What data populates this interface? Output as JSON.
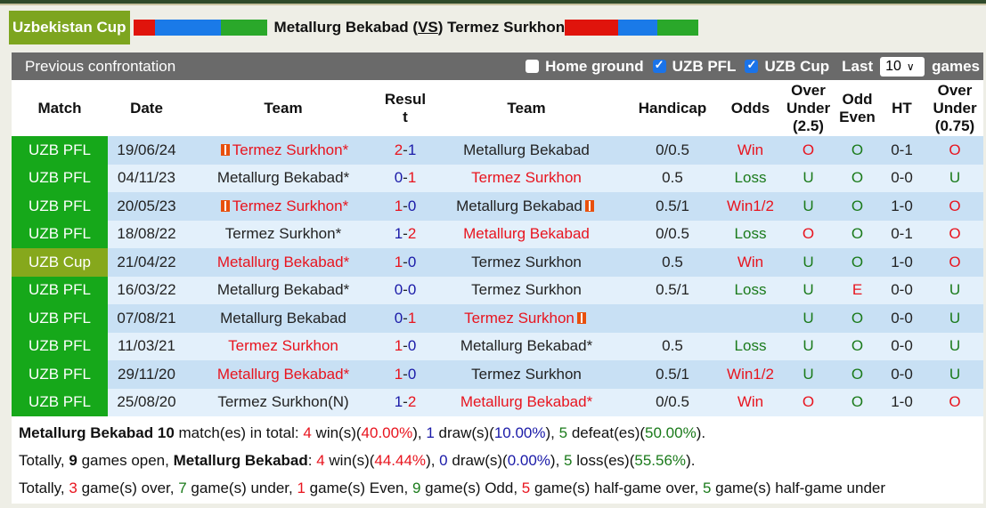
{
  "header": {
    "competition": "Uzbekistan Cup",
    "home": "Metallurg Bekabad",
    "vs": "VS",
    "away": "Termez Surkhon"
  },
  "toolbar": {
    "title": "Previous confrontation",
    "home_ground": "Home ground",
    "home_ground_checked": false,
    "uzb_pfl": "UZB PFL",
    "uzb_pfl_checked": true,
    "uzb_cup": "UZB Cup",
    "uzb_cup_checked": true,
    "last": "Last",
    "last_value": "10",
    "games": "games"
  },
  "columns": [
    "Match",
    "Date",
    "Team",
    "Resul t",
    "Team",
    "Handicap",
    "Odds",
    "Over Under (2.5)",
    "Odd Even",
    "HT",
    "Over Under (0.75)"
  ],
  "rows": [
    {
      "match": "UZB PFL",
      "date": "19/06/24",
      "home": "Termez Surkhon*",
      "home_red": true,
      "home_flag": true,
      "s1": "2",
      "s2": "1",
      "c1": "red",
      "c2": "blue",
      "away": "Metallurg Bekabad",
      "away_red": false,
      "away_flag": false,
      "hc": "0/0.5",
      "odds": "Win",
      "ou": "O",
      "oe": "O",
      "ht": "0-1",
      "ou2": "O"
    },
    {
      "match": "UZB PFL",
      "date": "04/11/23",
      "home": "Metallurg Bekabad*",
      "home_red": false,
      "s1": "0",
      "s2": "1",
      "c1": "blue",
      "c2": "red",
      "away": "Termez Surkhon",
      "away_red": true,
      "hc": "0.5",
      "odds": "Loss",
      "ou": "U",
      "oe": "O",
      "ht": "0-0",
      "ou2": "U"
    },
    {
      "match": "UZB PFL",
      "date": "20/05/23",
      "home": "Termez Surkhon*",
      "home_red": true,
      "home_flag": true,
      "s1": "1",
      "s2": "0",
      "c1": "red",
      "c2": "blue",
      "away": "Metallurg Bekabad",
      "away_red": false,
      "away_flag": true,
      "hc": "0.5/1",
      "odds": "Win1/2",
      "ou": "U",
      "oe": "O",
      "ht": "1-0",
      "ou2": "O"
    },
    {
      "match": "UZB PFL",
      "date": "18/08/22",
      "home": "Termez Surkhon*",
      "home_red": false,
      "s1": "1",
      "s2": "2",
      "c1": "blue",
      "c2": "red",
      "away": "Metallurg Bekabad",
      "away_red": true,
      "hc": "0/0.5",
      "odds": "Loss",
      "ou": "O",
      "oe": "O",
      "ht": "0-1",
      "ou2": "O"
    },
    {
      "match": "UZB Cup",
      "date": "21/04/22",
      "home": "Metallurg Bekabad*",
      "home_red": true,
      "s1": "1",
      "s2": "0",
      "c1": "red",
      "c2": "blue",
      "away": "Termez Surkhon",
      "away_red": false,
      "hc": "0.5",
      "odds": "Win",
      "ou": "U",
      "oe": "O",
      "ht": "1-0",
      "ou2": "O"
    },
    {
      "match": "UZB PFL",
      "date": "16/03/22",
      "home": "Metallurg Bekabad*",
      "home_red": false,
      "s1": "0",
      "s2": "0",
      "c1": "blue",
      "c2": "blue",
      "away": "Termez Surkhon",
      "away_red": false,
      "hc": "0.5/1",
      "odds": "Loss",
      "ou": "U",
      "oe": "E",
      "ht": "0-0",
      "ou2": "U"
    },
    {
      "match": "UZB PFL",
      "date": "07/08/21",
      "home": "Metallurg Bekabad",
      "home_red": false,
      "s1": "0",
      "s2": "1",
      "c1": "blue",
      "c2": "red",
      "away": "Termez Surkhon",
      "away_red": true,
      "away_flag": true,
      "hc": "",
      "odds": "",
      "ou": "U",
      "oe": "O",
      "ht": "0-0",
      "ou2": "U"
    },
    {
      "match": "UZB PFL",
      "date": "11/03/21",
      "home": "Termez Surkhon",
      "home_red": true,
      "s1": "1",
      "s2": "0",
      "c1": "red",
      "c2": "blue",
      "away": "Metallurg Bekabad*",
      "away_red": false,
      "hc": "0.5",
      "odds": "Loss",
      "ou": "U",
      "oe": "O",
      "ht": "0-0",
      "ou2": "U"
    },
    {
      "match": "UZB PFL",
      "date": "29/11/20",
      "home": "Metallurg Bekabad*",
      "home_red": true,
      "s1": "1",
      "s2": "0",
      "c1": "red",
      "c2": "blue",
      "away": "Termez Surkhon",
      "away_red": false,
      "hc": "0.5/1",
      "odds": "Win1/2",
      "ou": "U",
      "oe": "O",
      "ht": "0-0",
      "ou2": "U"
    },
    {
      "match": "UZB PFL",
      "date": "25/08/20",
      "home": "Termez Surkhon(N)",
      "home_red": false,
      "s1": "1",
      "s2": "2",
      "c1": "blue",
      "c2": "red",
      "away": "Metallurg Bekabad*",
      "away_red": true,
      "hc": "0/0.5",
      "odds": "Win",
      "ou": "O",
      "oe": "O",
      "ht": "1-0",
      "ou2": "O"
    }
  ],
  "summary": [
    [
      [
        "Metallurg Bekabad 10",
        "b"
      ],
      [
        " match(es) in total: ",
        ""
      ],
      [
        "4",
        "red"
      ],
      [
        " win(s)(",
        ""
      ],
      [
        "40.00%",
        "red"
      ],
      [
        "), ",
        ""
      ],
      [
        "1",
        "blue"
      ],
      [
        " draw(s)(",
        ""
      ],
      [
        "10.00%",
        "blue"
      ],
      [
        "), ",
        ""
      ],
      [
        "5",
        "green"
      ],
      [
        " defeat(es)(",
        ""
      ],
      [
        "50.00%",
        "green"
      ],
      [
        ").",
        ""
      ]
    ],
    [
      [
        "Totally, ",
        ""
      ],
      [
        "9",
        "b"
      ],
      [
        " games open, ",
        ""
      ],
      [
        "Metallurg Bekabad",
        "b"
      ],
      [
        ": ",
        ""
      ],
      [
        "4",
        "red"
      ],
      [
        " win(s)(",
        ""
      ],
      [
        "44.44%",
        "red"
      ],
      [
        "), ",
        ""
      ],
      [
        "0",
        "blue"
      ],
      [
        " draw(s)(",
        ""
      ],
      [
        "0.00%",
        "blue"
      ],
      [
        "), ",
        ""
      ],
      [
        "5",
        "green"
      ],
      [
        " loss(es)(",
        ""
      ],
      [
        "55.56%",
        "green"
      ],
      [
        ").",
        ""
      ]
    ],
    [
      [
        "Totally, ",
        ""
      ],
      [
        "3",
        "red"
      ],
      [
        " game(s) over, ",
        ""
      ],
      [
        "7",
        "green"
      ],
      [
        " game(s) under, ",
        ""
      ],
      [
        "1",
        "red"
      ],
      [
        " game(s) Even, ",
        ""
      ],
      [
        "9",
        "green"
      ],
      [
        " game(s) Odd, ",
        ""
      ],
      [
        "5",
        "red"
      ],
      [
        " game(s) half-game over, ",
        ""
      ],
      [
        "5",
        "green"
      ],
      [
        " game(s) half-game under",
        ""
      ]
    ]
  ],
  "colors": {
    "win": "#e8141e",
    "loss": "#1a7a1a",
    "pfl": "#16a81a",
    "cup": "#86a81c"
  }
}
